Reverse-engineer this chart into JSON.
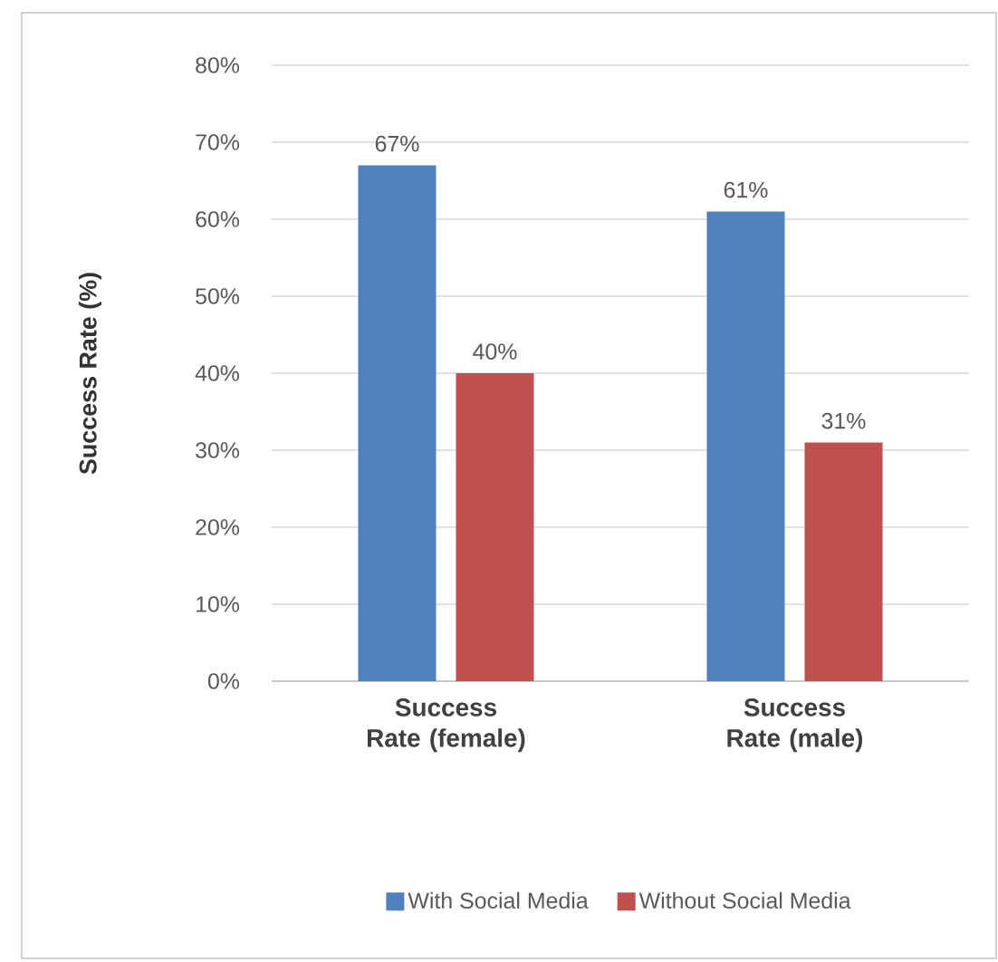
{
  "chart_data": {
    "type": "bar",
    "ylabel": "Success Rate (%)",
    "categories": [
      "Success Rate (female)",
      "Success Rate (male)"
    ],
    "series": [
      {
        "name": "With Social Media",
        "color": "#4f81bd",
        "values": [
          67,
          61
        ],
        "value_labels": [
          "67%",
          "61%"
        ]
      },
      {
        "name": "Without Social Media",
        "color": "#c0504d",
        "values": [
          40,
          31
        ],
        "value_labels": [
          "40%",
          "31%"
        ]
      }
    ],
    "ylim": [
      0,
      80
    ],
    "yticks": [
      {
        "value": 0,
        "label": "0%"
      },
      {
        "value": 10,
        "label": "10%"
      },
      {
        "value": 20,
        "label": "20%"
      },
      {
        "value": 30,
        "label": "30%"
      },
      {
        "value": 40,
        "label": "40%"
      },
      {
        "value": 50,
        "label": "50%"
      },
      {
        "value": 60,
        "label": "60%"
      },
      {
        "value": 70,
        "label": "70%"
      },
      {
        "value": 80,
        "label": "80%"
      }
    ],
    "grid": "y",
    "legend": "bottom"
  }
}
